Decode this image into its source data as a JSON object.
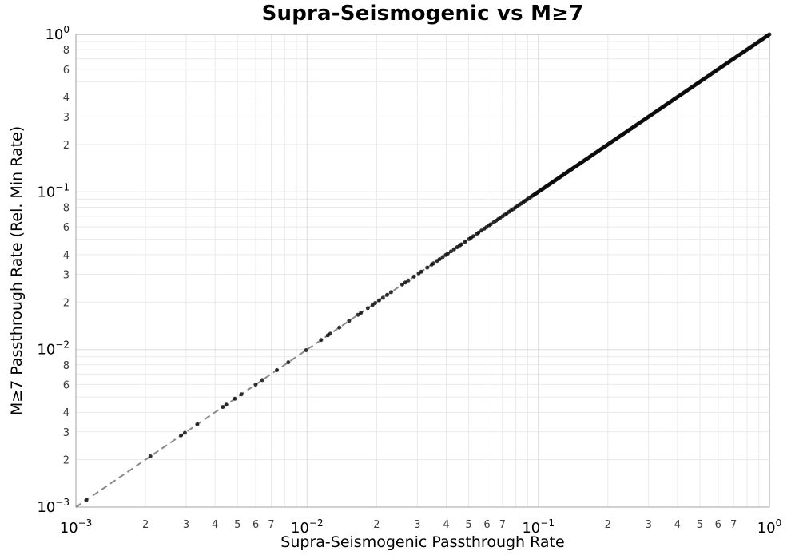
{
  "chart_data": {
    "type": "scatter",
    "title": "Supra-Seismogenic vs M≥7",
    "xlabel": "Supra-Seismogenic Passthrough Rate",
    "ylabel": "M≥7 Passthrough Rate (Rel. Min Rate)",
    "xscale": "log",
    "yscale": "log",
    "xlim": [
      0.001,
      1.0
    ],
    "ylim": [
      0.001,
      1.0
    ],
    "grid": {
      "major": true,
      "minor": true
    },
    "legend": "none",
    "axes": {
      "major_tick_exponents": [
        -3,
        -2,
        -1,
        0
      ],
      "x_labeled_minor_mantissas": [
        2,
        3,
        4,
        5,
        6,
        7
      ],
      "y_labeled_minor_mantissas": [
        2,
        3,
        4,
        6,
        8
      ],
      "minor_gridline_mantissas": [
        2,
        3,
        4,
        5,
        6,
        7,
        8,
        9
      ]
    },
    "identity_line": {
      "meaning": "y = x reference",
      "style": "dashed",
      "from": [
        0.001,
        0.001
      ],
      "to": [
        1.0,
        1.0
      ]
    },
    "relation": "every data point lies on y = x",
    "marker": {
      "shape": "circle",
      "radius_px": 2.5
    },
    "points_sparse_x": [
      0.00111,
      0.0021,
      0.00285,
      0.00296,
      0.00335,
      0.00432,
      0.00447,
      0.00487,
      0.0052,
      0.00599,
      0.0064,
      0.0074,
      0.0083,
      0.0099,
      0.0115,
      0.0123,
      0.0126,
      0.0138,
      0.0152,
      0.0166,
      0.0171,
      0.0183,
      0.0192,
      0.0197,
      0.0205,
      0.0213,
      0.0222,
      0.0231,
      0.0258,
      0.0266,
      0.0274,
      0.029,
      0.0304,
      0.0312,
      0.0331,
      0.0346,
      0.0352,
      0.0365,
      0.0374,
      0.0386,
      0.0398,
      0.0406,
      0.0419,
      0.0432,
      0.0446,
      0.0458,
      0.0465,
      0.0483,
      0.0502,
      0.0512,
      0.0524,
      0.0543,
      0.0551,
      0.0568,
      0.0584,
      0.0597,
      0.0614,
      0.0623,
      0.0643,
      0.0656,
      0.0671,
      0.0684,
      0.0702,
      0.0716,
      0.073,
      0.0748,
      0.0762,
      0.0777,
      0.0795,
      0.0812,
      0.0829,
      0.0845,
      0.0862,
      0.0878,
      0.0895,
      0.0912,
      0.093,
      0.0948,
      0.0966,
      0.0985
    ],
    "points_dense_x": {
      "log10_from": -1.02,
      "log10_to": 0,
      "count": 230,
      "spacing": "log-uniform",
      "note": "points overlap into a solid black segment from ~0.095 up to 1.0"
    }
  },
  "colors": {
    "background": "#ffffff",
    "spine": "#a0a0a0",
    "grid_major": "#dcdcdc",
    "grid_minor": "#e9e9e9",
    "identity_line": "#8a8a8a",
    "marker": "rgba(10,10,10,0.82)",
    "major_tick_label": "#000000",
    "minor_tick_label": "#3c3c3c",
    "title": "#000000"
  }
}
